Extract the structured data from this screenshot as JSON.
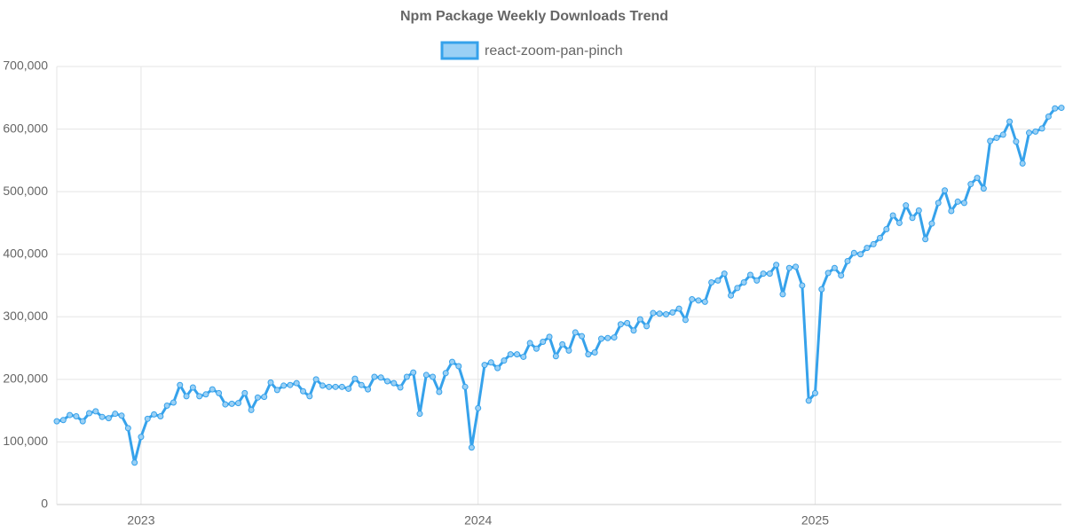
{
  "chart_data": {
    "type": "line",
    "title": "Npm Package Weekly Downloads Trend",
    "categories": [
      null,
      null,
      null,
      null,
      null,
      null,
      null,
      null,
      null,
      null,
      null,
      null,
      null,
      "2023",
      null,
      null,
      null,
      null,
      null,
      null,
      null,
      null,
      null,
      null,
      null,
      null,
      null,
      null,
      null,
      null,
      null,
      null,
      null,
      null,
      null,
      null,
      null,
      null,
      null,
      null,
      null,
      null,
      null,
      null,
      null,
      null,
      null,
      null,
      null,
      null,
      null,
      null,
      null,
      null,
      null,
      null,
      null,
      null,
      null,
      null,
      null,
      null,
      null,
      null,
      null,
      "2024",
      null,
      null,
      null,
      null,
      null,
      null,
      null,
      null,
      null,
      null,
      null,
      null,
      null,
      null,
      null,
      null,
      null,
      null,
      null,
      null,
      null,
      null,
      null,
      null,
      null,
      null,
      null,
      null,
      null,
      null,
      null,
      null,
      null,
      null,
      null,
      null,
      null,
      null,
      null,
      null,
      null,
      null,
      null,
      null,
      null,
      null,
      null,
      null,
      null,
      null,
      null,
      "2025",
      null,
      null,
      null,
      null,
      null,
      null,
      null,
      null,
      null,
      null,
      null,
      null,
      null,
      null,
      null,
      null,
      null,
      null,
      null,
      null,
      null,
      null,
      null,
      null,
      null,
      null,
      null,
      null,
      null,
      null,
      null,
      null,
      null,
      null,
      null,
      null,
      null,
      null
    ],
    "series": [
      {
        "name": "react-zoom-pan-pinch",
        "color": "#36a2eb",
        "fill": "#9ad0f5",
        "values": [
          133000,
          135000,
          143000,
          141000,
          133000,
          146000,
          149000,
          140000,
          138000,
          145000,
          142000,
          122000,
          67000,
          108000,
          137000,
          144000,
          141000,
          158000,
          163000,
          191000,
          173000,
          187000,
          173000,
          176000,
          184000,
          178000,
          160000,
          161000,
          162000,
          178000,
          151000,
          171000,
          172000,
          195000,
          183000,
          190000,
          191000,
          194000,
          181000,
          173000,
          200000,
          190000,
          188000,
          188000,
          188000,
          185000,
          201000,
          191000,
          184000,
          204000,
          203000,
          197000,
          194000,
          187000,
          204000,
          211000,
          145000,
          207000,
          204000,
          180000,
          210000,
          228000,
          221000,
          188000,
          91000,
          154000,
          223000,
          227000,
          218000,
          230000,
          240000,
          240000,
          236000,
          258000,
          249000,
          260000,
          268000,
          237000,
          256000,
          246000,
          275000,
          269000,
          240000,
          243000,
          265000,
          266000,
          267000,
          288000,
          290000,
          278000,
          296000,
          285000,
          306000,
          305000,
          304000,
          307000,
          313000,
          295000,
          328000,
          326000,
          324000,
          355000,
          358000,
          369000,
          334000,
          346000,
          355000,
          367000,
          358000,
          369000,
          369000,
          383000,
          336000,
          378000,
          380000,
          350000,
          166000,
          178000,
          344000,
          370000,
          378000,
          366000,
          389000,
          402000,
          400000,
          410000,
          416000,
          426000,
          440000,
          462000,
          450000,
          478000,
          458000,
          470000,
          424000,
          449000,
          482000,
          502000,
          469000,
          484000,
          482000,
          512000,
          522000,
          505000,
          581000,
          586000,
          591000,
          612000,
          580000,
          545000,
          594000,
          596000,
          601000,
          620000,
          633000,
          634000
        ]
      }
    ],
    "ylim": [
      0,
      700000
    ],
    "yticks": [
      0,
      {
        "value": 100000,
        "label": "100,000"
      },
      {
        "value": 200000,
        "label": "200,000"
      },
      {
        "value": 300000,
        "label": "300,000"
      },
      {
        "value": 400000,
        "label": "400,000"
      },
      {
        "value": 500000,
        "label": "500,000"
      },
      {
        "value": 600000,
        "label": "600,000"
      },
      {
        "value": 700000,
        "label": "700,000"
      }
    ],
    "grid": true,
    "legend": "top"
  }
}
